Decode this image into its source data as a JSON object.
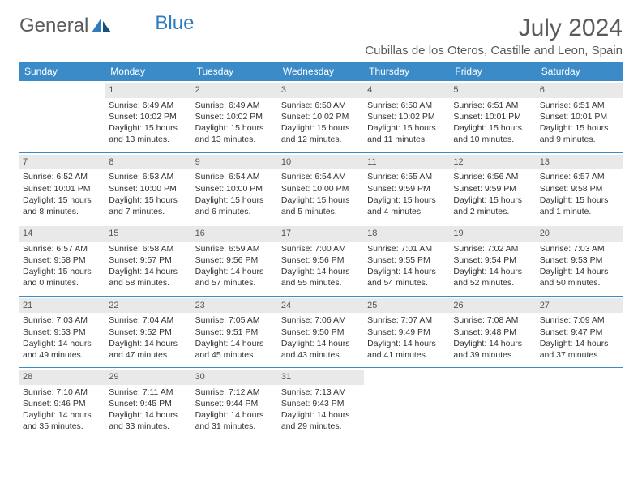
{
  "brand": {
    "word1": "General",
    "word2": "Blue"
  },
  "title": "July 2024",
  "location": "Cubillas de los Oteros, Castille and Leon, Spain",
  "colors": {
    "header_bg": "#3b8bc9",
    "header_text": "#ffffff",
    "daynum_bg": "#e9e9e9",
    "border": "#3b8bc9",
    "text": "#333333",
    "brand_gray": "#5a5a5a",
    "brand_blue": "#2f7bbf"
  },
  "weekdays": [
    "Sunday",
    "Monday",
    "Tuesday",
    "Wednesday",
    "Thursday",
    "Friday",
    "Saturday"
  ],
  "weeks": [
    [
      {
        "n": "",
        "sr": "",
        "ss": "",
        "dl1": "",
        "dl2": ""
      },
      {
        "n": "1",
        "sr": "Sunrise: 6:49 AM",
        "ss": "Sunset: 10:02 PM",
        "dl1": "Daylight: 15 hours",
        "dl2": "and 13 minutes."
      },
      {
        "n": "2",
        "sr": "Sunrise: 6:49 AM",
        "ss": "Sunset: 10:02 PM",
        "dl1": "Daylight: 15 hours",
        "dl2": "and 13 minutes."
      },
      {
        "n": "3",
        "sr": "Sunrise: 6:50 AM",
        "ss": "Sunset: 10:02 PM",
        "dl1": "Daylight: 15 hours",
        "dl2": "and 12 minutes."
      },
      {
        "n": "4",
        "sr": "Sunrise: 6:50 AM",
        "ss": "Sunset: 10:02 PM",
        "dl1": "Daylight: 15 hours",
        "dl2": "and 11 minutes."
      },
      {
        "n": "5",
        "sr": "Sunrise: 6:51 AM",
        "ss": "Sunset: 10:01 PM",
        "dl1": "Daylight: 15 hours",
        "dl2": "and 10 minutes."
      },
      {
        "n": "6",
        "sr": "Sunrise: 6:51 AM",
        "ss": "Sunset: 10:01 PM",
        "dl1": "Daylight: 15 hours",
        "dl2": "and 9 minutes."
      }
    ],
    [
      {
        "n": "7",
        "sr": "Sunrise: 6:52 AM",
        "ss": "Sunset: 10:01 PM",
        "dl1": "Daylight: 15 hours",
        "dl2": "and 8 minutes."
      },
      {
        "n": "8",
        "sr": "Sunrise: 6:53 AM",
        "ss": "Sunset: 10:00 PM",
        "dl1": "Daylight: 15 hours",
        "dl2": "and 7 minutes."
      },
      {
        "n": "9",
        "sr": "Sunrise: 6:54 AM",
        "ss": "Sunset: 10:00 PM",
        "dl1": "Daylight: 15 hours",
        "dl2": "and 6 minutes."
      },
      {
        "n": "10",
        "sr": "Sunrise: 6:54 AM",
        "ss": "Sunset: 10:00 PM",
        "dl1": "Daylight: 15 hours",
        "dl2": "and 5 minutes."
      },
      {
        "n": "11",
        "sr": "Sunrise: 6:55 AM",
        "ss": "Sunset: 9:59 PM",
        "dl1": "Daylight: 15 hours",
        "dl2": "and 4 minutes."
      },
      {
        "n": "12",
        "sr": "Sunrise: 6:56 AM",
        "ss": "Sunset: 9:59 PM",
        "dl1": "Daylight: 15 hours",
        "dl2": "and 2 minutes."
      },
      {
        "n": "13",
        "sr": "Sunrise: 6:57 AM",
        "ss": "Sunset: 9:58 PM",
        "dl1": "Daylight: 15 hours",
        "dl2": "and 1 minute."
      }
    ],
    [
      {
        "n": "14",
        "sr": "Sunrise: 6:57 AM",
        "ss": "Sunset: 9:58 PM",
        "dl1": "Daylight: 15 hours",
        "dl2": "and 0 minutes."
      },
      {
        "n": "15",
        "sr": "Sunrise: 6:58 AM",
        "ss": "Sunset: 9:57 PM",
        "dl1": "Daylight: 14 hours",
        "dl2": "and 58 minutes."
      },
      {
        "n": "16",
        "sr": "Sunrise: 6:59 AM",
        "ss": "Sunset: 9:56 PM",
        "dl1": "Daylight: 14 hours",
        "dl2": "and 57 minutes."
      },
      {
        "n": "17",
        "sr": "Sunrise: 7:00 AM",
        "ss": "Sunset: 9:56 PM",
        "dl1": "Daylight: 14 hours",
        "dl2": "and 55 minutes."
      },
      {
        "n": "18",
        "sr": "Sunrise: 7:01 AM",
        "ss": "Sunset: 9:55 PM",
        "dl1": "Daylight: 14 hours",
        "dl2": "and 54 minutes."
      },
      {
        "n": "19",
        "sr": "Sunrise: 7:02 AM",
        "ss": "Sunset: 9:54 PM",
        "dl1": "Daylight: 14 hours",
        "dl2": "and 52 minutes."
      },
      {
        "n": "20",
        "sr": "Sunrise: 7:03 AM",
        "ss": "Sunset: 9:53 PM",
        "dl1": "Daylight: 14 hours",
        "dl2": "and 50 minutes."
      }
    ],
    [
      {
        "n": "21",
        "sr": "Sunrise: 7:03 AM",
        "ss": "Sunset: 9:53 PM",
        "dl1": "Daylight: 14 hours",
        "dl2": "and 49 minutes."
      },
      {
        "n": "22",
        "sr": "Sunrise: 7:04 AM",
        "ss": "Sunset: 9:52 PM",
        "dl1": "Daylight: 14 hours",
        "dl2": "and 47 minutes."
      },
      {
        "n": "23",
        "sr": "Sunrise: 7:05 AM",
        "ss": "Sunset: 9:51 PM",
        "dl1": "Daylight: 14 hours",
        "dl2": "and 45 minutes."
      },
      {
        "n": "24",
        "sr": "Sunrise: 7:06 AM",
        "ss": "Sunset: 9:50 PM",
        "dl1": "Daylight: 14 hours",
        "dl2": "and 43 minutes."
      },
      {
        "n": "25",
        "sr": "Sunrise: 7:07 AM",
        "ss": "Sunset: 9:49 PM",
        "dl1": "Daylight: 14 hours",
        "dl2": "and 41 minutes."
      },
      {
        "n": "26",
        "sr": "Sunrise: 7:08 AM",
        "ss": "Sunset: 9:48 PM",
        "dl1": "Daylight: 14 hours",
        "dl2": "and 39 minutes."
      },
      {
        "n": "27",
        "sr": "Sunrise: 7:09 AM",
        "ss": "Sunset: 9:47 PM",
        "dl1": "Daylight: 14 hours",
        "dl2": "and 37 minutes."
      }
    ],
    [
      {
        "n": "28",
        "sr": "Sunrise: 7:10 AM",
        "ss": "Sunset: 9:46 PM",
        "dl1": "Daylight: 14 hours",
        "dl2": "and 35 minutes."
      },
      {
        "n": "29",
        "sr": "Sunrise: 7:11 AM",
        "ss": "Sunset: 9:45 PM",
        "dl1": "Daylight: 14 hours",
        "dl2": "and 33 minutes."
      },
      {
        "n": "30",
        "sr": "Sunrise: 7:12 AM",
        "ss": "Sunset: 9:44 PM",
        "dl1": "Daylight: 14 hours",
        "dl2": "and 31 minutes."
      },
      {
        "n": "31",
        "sr": "Sunrise: 7:13 AM",
        "ss": "Sunset: 9:43 PM",
        "dl1": "Daylight: 14 hours",
        "dl2": "and 29 minutes."
      },
      {
        "n": "",
        "sr": "",
        "ss": "",
        "dl1": "",
        "dl2": ""
      },
      {
        "n": "",
        "sr": "",
        "ss": "",
        "dl1": "",
        "dl2": ""
      },
      {
        "n": "",
        "sr": "",
        "ss": "",
        "dl1": "",
        "dl2": ""
      }
    ]
  ]
}
